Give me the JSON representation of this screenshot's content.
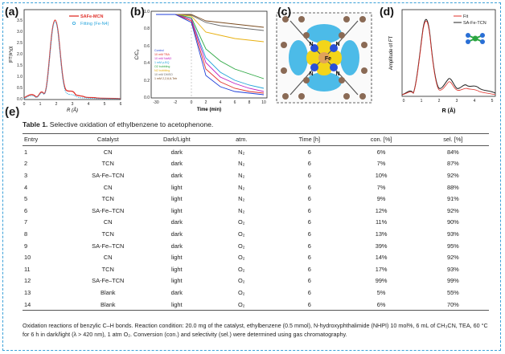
{
  "panels": {
    "a": {
      "letter": "(a)",
      "ylabel": "|FT(k³χ)|",
      "xlabel": "R (Å)",
      "legend": [
        "SAFe-MCN",
        "Fitting (Fe-N4)"
      ],
      "yticks": [
        "0.0",
        "0.5",
        "1.0",
        "1.5",
        "2.0",
        "2.5",
        "3.0",
        "3.5"
      ],
      "xticks": [
        "0",
        "1",
        "2",
        "3",
        "4",
        "5",
        "6"
      ],
      "colors": {
        "data": "#e0312a",
        "fit": "#2aa6dd"
      }
    },
    "b": {
      "letter": "(b)",
      "ylabel": "C/C₀",
      "xlabel": "Time (min)",
      "xticks": [
        "-30",
        "-2",
        "0",
        "2",
        "4",
        "6",
        "8",
        "10"
      ],
      "yticks": [
        "0.0",
        "0.2",
        "0.4",
        "0.6",
        "0.8",
        "1.0"
      ],
      "legend": [
        "Control",
        "10 mM TBA",
        "10 mM NaN3",
        "1 mM p-BQ",
        "O2 bubbling",
        "N2 bubbling",
        "10 mM DMSO",
        "1 mM 2,2,6,6-Tetr"
      ]
    },
    "c": {
      "letter": "(c)",
      "atoms": [
        "N",
        "N",
        "N",
        "N",
        "Fe"
      ]
    },
    "d": {
      "letter": "(d)",
      "ylabel": "Amplitude of FT",
      "xlabel": "R (Å)",
      "xticks": [
        "0",
        "1",
        "2",
        "3",
        "4",
        "5"
      ],
      "legend": [
        "Fit",
        "SA-Fe-TCN"
      ],
      "colors": {
        "fit": "#e0312a",
        "data": "#222222"
      }
    },
    "e": {
      "letter": "(e)"
    }
  },
  "table": {
    "title_bold": "Table 1.",
    "title_rest": "Selective oxidation of ethylbenzene to acetophenone.",
    "headers": [
      "Entry",
      "Catalyst",
      "Dark/Light",
      "atm.",
      "Time [h]",
      "con. [%]",
      "sel. [%]"
    ],
    "rows": [
      [
        "1",
        "CN",
        "dark",
        "N₂",
        "6",
        "6%",
        "84%"
      ],
      [
        "2",
        "TCN",
        "dark",
        "N₂",
        "6",
        "7%",
        "87%"
      ],
      [
        "3",
        "SA-Fe–TCN",
        "dark",
        "N₂",
        "6",
        "10%",
        "92%"
      ],
      [
        "4",
        "CN",
        "light",
        "N₂",
        "6",
        "7%",
        "88%"
      ],
      [
        "5",
        "TCN",
        "light",
        "N₂",
        "6",
        "9%",
        "91%"
      ],
      [
        "6",
        "SA-Fe–TCN",
        "light",
        "N₂",
        "6",
        "12%",
        "92%"
      ],
      [
        "7",
        "CN",
        "dark",
        "O₂",
        "6",
        "11%",
        "90%"
      ],
      [
        "8",
        "TCN",
        "dark",
        "O₂",
        "6",
        "13%",
        "93%"
      ],
      [
        "9",
        "SA-Fe–TCN",
        "dark",
        "O₂",
        "6",
        "39%",
        "95%"
      ],
      [
        "10",
        "CN",
        "light",
        "O₂",
        "6",
        "14%",
        "92%"
      ],
      [
        "11",
        "TCN",
        "light",
        "O₂",
        "6",
        "17%",
        "93%"
      ],
      [
        "12",
        "SA-Fe–TCN",
        "light",
        "O₂",
        "6",
        "99%",
        "99%"
      ],
      [
        "13",
        "Blank",
        "dark",
        "O₂",
        "6",
        "5%",
        "55%"
      ],
      [
        "14",
        "Blank",
        "light",
        "O₂",
        "6",
        "6%",
        "70%"
      ]
    ],
    "footnote": "Oxidation reactions of benzylic C–H bonds. Reaction condition: 20.0 mg of the catalyst, ethylbenzene (0.5 mmol), N-hydroxyphthalimide (NHPI) 10 mol%, 6 mL of CH₃CN, TEA, 60 °C for 6 h in dark/light (λ > 420 nm), 1 atm O₂. Conversion (con.) and selectivity (sel.) were determined using gas chromatography."
  }
}
